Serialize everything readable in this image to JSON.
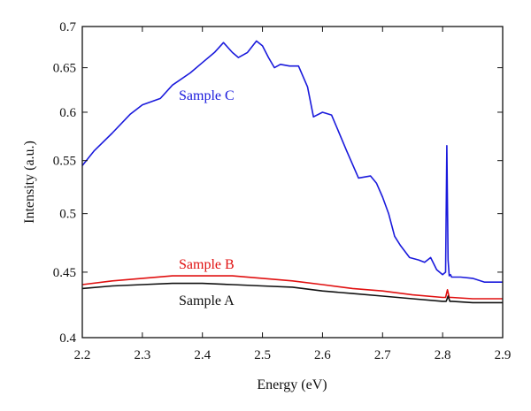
{
  "chart_data": {
    "type": "line",
    "title": "",
    "xlabel": "Energy (eV)",
    "ylabel": "Intensity (a.u.)",
    "xlim": [
      2.2,
      2.9
    ],
    "ylim": [
      0.4,
      0.7
    ],
    "yscale": "log",
    "grid": false,
    "legend": "none",
    "x_ticks": [
      "2.2",
      "2.3",
      "2.4",
      "2.5",
      "2.6",
      "2.7",
      "2.8",
      "2.9"
    ],
    "y_ticks": [
      "0.4",
      "0.45",
      "0.5",
      "0.55",
      "0.6",
      "0.65",
      "0.7"
    ],
    "series": [
      {
        "name": "Sample C",
        "color": "#1a1adc",
        "x": [
          2.2,
          2.22,
          2.25,
          2.28,
          2.3,
          2.33,
          2.35,
          2.38,
          2.4,
          2.42,
          2.435,
          2.45,
          2.46,
          2.475,
          2.49,
          2.5,
          2.51,
          2.52,
          2.53,
          2.545,
          2.56,
          2.575,
          2.585,
          2.6,
          2.615,
          2.625,
          2.64,
          2.66,
          2.68,
          2.69,
          2.7,
          2.71,
          2.72,
          2.73,
          2.745,
          2.76,
          2.77,
          2.78,
          2.79,
          2.8,
          2.805,
          2.807,
          2.809,
          2.811,
          2.813,
          2.815,
          2.83,
          2.85,
          2.87,
          2.9
        ],
        "y": [
          0.545,
          0.56,
          0.578,
          0.598,
          0.608,
          0.615,
          0.63,
          0.644,
          0.656,
          0.668,
          0.68,
          0.668,
          0.662,
          0.668,
          0.682,
          0.676,
          0.662,
          0.65,
          0.654,
          0.652,
          0.652,
          0.628,
          0.595,
          0.6,
          0.597,
          0.582,
          0.56,
          0.533,
          0.535,
          0.528,
          0.515,
          0.5,
          0.48,
          0.472,
          0.462,
          0.46,
          0.458,
          0.462,
          0.452,
          0.448,
          0.45,
          0.565,
          0.46,
          0.447,
          0.448,
          0.446,
          0.446,
          0.445,
          0.442,
          0.442
        ]
      },
      {
        "name": "Sample B",
        "color": "#e01010",
        "x": [
          2.2,
          2.25,
          2.3,
          2.35,
          2.4,
          2.45,
          2.5,
          2.55,
          2.6,
          2.65,
          2.7,
          2.75,
          2.8,
          2.805,
          2.808,
          2.811,
          2.815,
          2.85,
          2.9
        ],
        "y": [
          0.44,
          0.443,
          0.445,
          0.447,
          0.447,
          0.447,
          0.445,
          0.443,
          0.44,
          0.437,
          0.435,
          0.432,
          0.43,
          0.43,
          0.436,
          0.43,
          0.43,
          0.429,
          0.429
        ]
      },
      {
        "name": "Sample A",
        "color": "#111111",
        "x": [
          2.2,
          2.25,
          2.3,
          2.35,
          2.4,
          2.45,
          2.5,
          2.55,
          2.6,
          2.65,
          2.7,
          2.75,
          2.8,
          2.806,
          2.809,
          2.812,
          2.816,
          2.85,
          2.9
        ],
        "y": [
          0.437,
          0.439,
          0.44,
          0.441,
          0.441,
          0.44,
          0.439,
          0.438,
          0.435,
          0.433,
          0.431,
          0.429,
          0.427,
          0.427,
          0.431,
          0.427,
          0.427,
          0.426,
          0.426
        ]
      }
    ]
  }
}
